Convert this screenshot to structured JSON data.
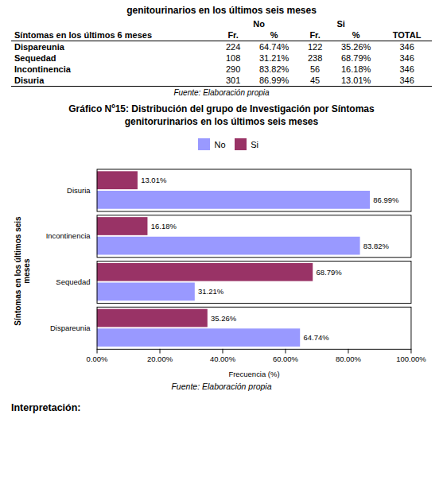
{
  "table": {
    "title": "genitourinarios en los últimos seis meses",
    "column_groups": [
      "No",
      "Si"
    ],
    "columns": [
      "Síntomas en los últimos 6 meses",
      "Fr.",
      "%",
      "Fr.",
      "%",
      "TOTAL"
    ],
    "rows": [
      [
        "Dispareunia",
        "224",
        "64.74%",
        "122",
        "35.26%",
        "346"
      ],
      [
        "Sequedad",
        "108",
        "31.21%",
        "238",
        "68.79%",
        "346"
      ],
      [
        "Incontinencia",
        "290",
        "83.82%",
        "56",
        "16.18%",
        "346"
      ],
      [
        "Disuria",
        "301",
        "86.99%",
        "45",
        "13.01%",
        "346"
      ]
    ],
    "source": "Fuente: Elaboración propia"
  },
  "chart_data": {
    "type": "bar",
    "orientation": "horizontal",
    "title": "Gráfico Nº15: Distribución del grupo de Investigación por Síntomas",
    "subtitle": "genitorurinarios en los últimos seis meses",
    "categories": [
      "Dispareunia",
      "Sequedad",
      "Incontinencia",
      "Disuria"
    ],
    "series": [
      {
        "name": "No",
        "color": "#9999FF",
        "values": [
          64.74,
          31.21,
          83.82,
          86.99
        ],
        "value_labels": [
          "64.74%",
          "31.21%",
          "83.82%",
          "86.99%"
        ]
      },
      {
        "name": "Si",
        "color": "#993366",
        "values": [
          35.26,
          68.79,
          16.18,
          13.01
        ],
        "value_labels": [
          "35.26%",
          "68.79%",
          "16.18%",
          "13.01%"
        ]
      }
    ],
    "xlim": [
      0,
      100
    ],
    "xticks": [
      {
        "value": 0,
        "label": "0.00%"
      },
      {
        "value": 20,
        "label": "20.00%"
      },
      {
        "value": 40,
        "label": "40.00%"
      },
      {
        "value": 60,
        "label": "60.00%"
      },
      {
        "value": 80,
        "label": "80.00%"
      },
      {
        "value": 100,
        "label": "100.00%"
      }
    ],
    "xlabel": "Frecuencia (%)",
    "ylabel": "Síntomas en los últimos seis\nmeses",
    "data_labels": true,
    "legend": "upper center",
    "grid": false,
    "annotations": [
      "Fuente: Elaboración propia",
      "Interpretación:"
    ]
  }
}
